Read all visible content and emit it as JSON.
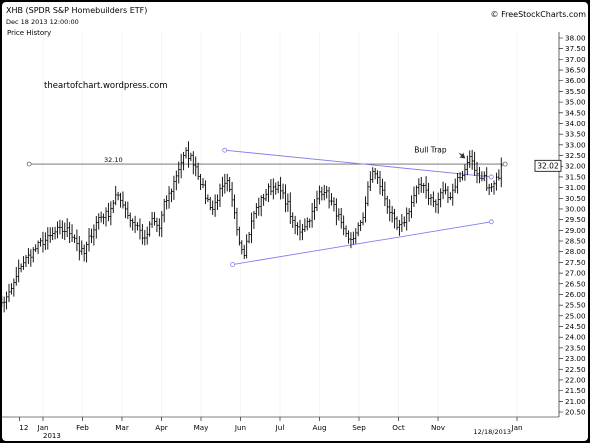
{
  "header": {
    "symbol_title": "XHB (SPDR S&P Homebuilders ETF)",
    "date": "Dec 18 2013 12:00:00",
    "copyright": "© FreeStockCharts.com",
    "panel_label": "Price History",
    "watermark": "theartofchart.wordpress.com"
  },
  "chart_data": {
    "type": "ohlc",
    "y_ticks": [
      "38.00",
      "37.50",
      "37.00",
      "36.50",
      "36.00",
      "35.50",
      "35.00",
      "34.50",
      "34.00",
      "33.50",
      "33.00",
      "32.50",
      "32.00",
      "31.50",
      "31.00",
      "30.50",
      "30.00",
      "29.50",
      "29.00",
      "28.50",
      "28.00",
      "27.50",
      "27.00",
      "26.50",
      "26.00",
      "25.50",
      "25.00",
      "24.50",
      "24.00",
      "23.50",
      "23.00",
      "22.50",
      "22.00",
      "21.50",
      "21.00",
      "20.50"
    ],
    "ylim": [
      20.5,
      38.0
    ],
    "x_ticks": [
      {
        "label": "12",
        "month": -0.6
      },
      {
        "label": "Jan",
        "month": 0
      },
      {
        "label": "Feb",
        "month": 1
      },
      {
        "label": "Mar",
        "month": 2
      },
      {
        "label": "Apr",
        "month": 3
      },
      {
        "label": "May",
        "month": 4
      },
      {
        "label": "Jun",
        "month": 5
      },
      {
        "label": "Jul",
        "month": 6
      },
      {
        "label": "Aug",
        "month": 7
      },
      {
        "label": "Sep",
        "month": 8
      },
      {
        "label": "Oct",
        "month": 9
      },
      {
        "label": "Nov",
        "month": 10
      },
      {
        "label": "Jan",
        "month": 12
      }
    ],
    "year_label": "2013",
    "last_date_label": "12/18/2013",
    "last_price": "32.02",
    "lines": [
      {
        "name": "horizontal",
        "label": "32.10",
        "from": [
          -0.35,
          32.1
        ],
        "to": [
          11.7,
          32.1
        ],
        "color": "#666666"
      },
      {
        "name": "upper-trendline",
        "from": [
          4.6,
          32.75
        ],
        "to": [
          11.35,
          31.5
        ],
        "color": "#8080ee"
      },
      {
        "name": "lower-trendline",
        "from": [
          4.8,
          27.4
        ],
        "to": [
          11.35,
          29.4
        ],
        "color": "#8080ee"
      }
    ],
    "annotation": {
      "text": "Bull Trap",
      "month": 9.4,
      "value": 32.5
    },
    "anchors": [
      [
        -8,
        26.0
      ],
      [
        -6,
        25.6
      ],
      [
        -4,
        25.5
      ],
      [
        -1,
        25.8
      ],
      [
        2,
        26.5
      ],
      [
        5,
        27.4
      ],
      [
        9,
        27.9
      ],
      [
        13,
        28.4
      ],
      [
        16,
        28.6
      ],
      [
        20,
        29.0
      ],
      [
        24,
        29.0
      ],
      [
        27,
        28.7
      ],
      [
        29,
        28.1
      ],
      [
        31,
        27.9
      ],
      [
        33,
        28.6
      ],
      [
        37,
        29.6
      ],
      [
        41,
        29.8
      ],
      [
        44,
        30.6
      ],
      [
        47,
        30.3
      ],
      [
        50,
        29.5
      ],
      [
        53,
        29.2
      ],
      [
        56,
        28.5
      ],
      [
        59,
        29.5
      ],
      [
        62,
        29.1
      ],
      [
        64,
        30.2
      ],
      [
        67,
        30.9
      ],
      [
        69,
        31.6
      ],
      [
        71,
        32.2
      ],
      [
        73,
        32.6
      ],
      [
        75,
        32.4
      ],
      [
        77,
        32.0
      ],
      [
        79,
        31.3
      ],
      [
        81,
        30.6
      ],
      [
        84,
        30.0
      ],
      [
        87,
        30.8
      ],
      [
        90,
        31.2
      ],
      [
        93,
        29.9
      ],
      [
        95,
        28.5
      ],
      [
        97,
        28.0
      ],
      [
        99,
        28.9
      ],
      [
        101,
        29.8
      ],
      [
        104,
        30.4
      ],
      [
        107,
        30.9
      ],
      [
        110,
        31.1
      ],
      [
        112,
        30.8
      ],
      [
        115,
        30.2
      ],
      [
        117,
        29.3
      ],
      [
        120,
        29.0
      ],
      [
        123,
        29.4
      ],
      [
        126,
        30.0
      ],
      [
        128,
        30.8
      ],
      [
        130,
        30.9
      ],
      [
        133,
        30.3
      ],
      [
        136,
        29.6
      ],
      [
        138,
        28.9
      ],
      [
        140,
        28.5
      ],
      [
        143,
        28.8
      ],
      [
        146,
        29.7
      ],
      [
        148,
        30.9
      ],
      [
        150,
        31.8
      ],
      [
        152,
        31.4
      ],
      [
        154,
        30.8
      ],
      [
        157,
        29.9
      ],
      [
        160,
        29.1
      ],
      [
        162,
        29.2
      ],
      [
        165,
        30.0
      ],
      [
        168,
        30.9
      ],
      [
        171,
        31.2
      ],
      [
        173,
        30.6
      ],
      [
        176,
        30.2
      ],
      [
        179,
        30.9
      ],
      [
        182,
        30.6
      ],
      [
        185,
        31.4
      ],
      [
        188,
        31.8
      ],
      [
        190,
        32.6
      ],
      [
        192,
        31.7
      ],
      [
        194,
        31.3
      ],
      [
        196,
        31.4
      ],
      [
        198,
        30.9
      ],
      [
        200,
        31.1
      ],
      [
        202,
        31.6
      ],
      [
        203,
        32.02
      ]
    ]
  }
}
